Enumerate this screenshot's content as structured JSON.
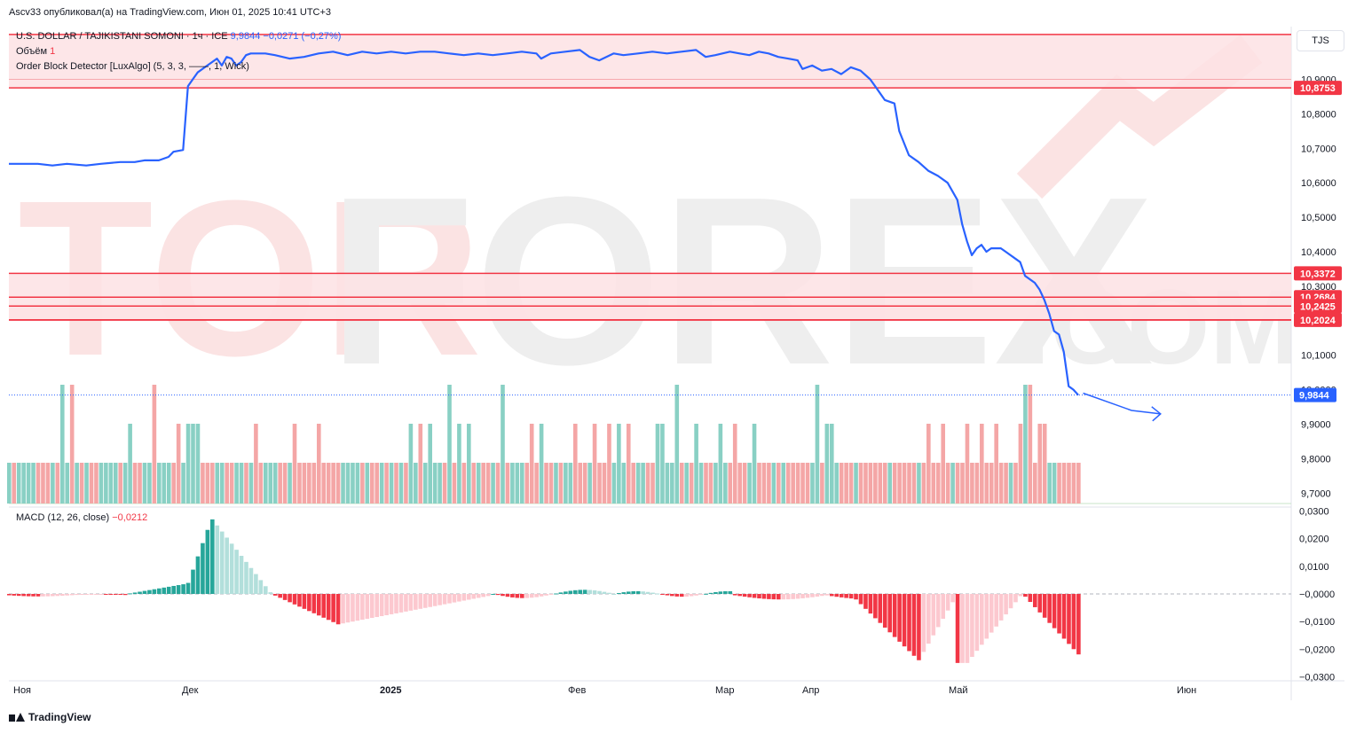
{
  "header": {
    "published": "Ascv33 опубликовал(а) на TradingView.com, Июн 01, 2025 10:41 UTC+3"
  },
  "legend": {
    "symbol": "U.S. DOLLAR / TAJIKISTANI SOMONI · 1ч · ICE",
    "price": "9,9844",
    "change": "−0,0271 (−0,27%)",
    "volume_label": "Объём",
    "volume_value": "1",
    "indicator": "Order Block Detector [LuxAlgo] (5, 3, 3, ——, 1, Wick)",
    "macd_label": "MACD (12, 26, close)",
    "macd_value": "−0,0212"
  },
  "currency": "TJS",
  "footer": {
    "brand": "TradingView"
  },
  "watermark": {
    "left": "TOR",
    "mid": "FOREX",
    "suffix": ".COM"
  },
  "colors": {
    "line": "#2962ff",
    "red": "#f23645",
    "zone": "#fde2e4",
    "vol_up": "#89d0c4",
    "vol_down": "#f4a6a6",
    "macd_up_strong": "#26a69a",
    "macd_up_weak": "#b2dfdb",
    "macd_down_strong": "#f23645",
    "macd_down_weak": "#fcc8cf"
  },
  "chart_data": [
    {
      "type": "line",
      "series": "USD/TJS price",
      "x_labels": [
        "Ноя",
        "Дек",
        "2025",
        "Фев",
        "Мар",
        "Апр",
        "Май",
        "Июн"
      ],
      "y_ticks": [
        "10,9000",
        "10,8000",
        "10,7000",
        "10,6000",
        "10,5000",
        "10,4000",
        "10,3000",
        "10,2000",
        "10,1000",
        "10,0000",
        "9,9000",
        "9,8000",
        "9,7000"
      ],
      "ylim": [
        9.67,
        11.04
      ],
      "current_price": 9.9844,
      "current_label": "9,9844",
      "points": [
        [
          0,
          10.655
        ],
        [
          6,
          10.655
        ],
        [
          9,
          10.65
        ],
        [
          12,
          10.655
        ],
        [
          16,
          10.65
        ],
        [
          19,
          10.655
        ],
        [
          23,
          10.66
        ],
        [
          26,
          10.66
        ],
        [
          28,
          10.665
        ],
        [
          31,
          10.665
        ],
        [
          33,
          10.675
        ],
        [
          34,
          10.69
        ],
        [
          36,
          10.695
        ],
        [
          37,
          10.88
        ],
        [
          38,
          10.9
        ],
        [
          39,
          10.92
        ],
        [
          41,
          10.94
        ],
        [
          43,
          10.96
        ],
        [
          44,
          10.94
        ],
        [
          45,
          10.965
        ],
        [
          46,
          10.96
        ],
        [
          47,
          10.94
        ],
        [
          48,
          10.95
        ],
        [
          49,
          10.97
        ],
        [
          50,
          10.975
        ],
        [
          53,
          10.975
        ],
        [
          55,
          10.97
        ],
        [
          58,
          10.96
        ],
        [
          61,
          10.965
        ],
        [
          64,
          10.975
        ],
        [
          67,
          10.98
        ],
        [
          70,
          10.97
        ],
        [
          73,
          10.98
        ],
        [
          76,
          10.975
        ],
        [
          79,
          10.98
        ],
        [
          82,
          10.975
        ],
        [
          85,
          10.98
        ],
        [
          88,
          10.98
        ],
        [
          91,
          10.975
        ],
        [
          94,
          10.97
        ],
        [
          97,
          10.975
        ],
        [
          100,
          10.97
        ],
        [
          103,
          10.975
        ],
        [
          106,
          10.98
        ],
        [
          109,
          10.975
        ],
        [
          110,
          10.96
        ],
        [
          112,
          10.975
        ],
        [
          115,
          10.98
        ],
        [
          118,
          10.985
        ],
        [
          120,
          10.965
        ],
        [
          122,
          10.955
        ],
        [
          125,
          10.975
        ],
        [
          127,
          10.97
        ],
        [
          130,
          10.975
        ],
        [
          133,
          10.98
        ],
        [
          136,
          10.975
        ],
        [
          139,
          10.98
        ],
        [
          142,
          10.985
        ],
        [
          144,
          10.965
        ],
        [
          146,
          10.97
        ],
        [
          149,
          10.98
        ],
        [
          151,
          10.975
        ],
        [
          153,
          10.97
        ],
        [
          155,
          10.98
        ],
        [
          157,
          10.975
        ],
        [
          159,
          10.965
        ],
        [
          161,
          10.96
        ],
        [
          163,
          10.955
        ],
        [
          164,
          10.93
        ],
        [
          166,
          10.94
        ],
        [
          168,
          10.925
        ],
        [
          170,
          10.93
        ],
        [
          172,
          10.915
        ],
        [
          174,
          10.935
        ],
        [
          176,
          10.925
        ],
        [
          178,
          10.9
        ],
        [
          179,
          10.88
        ],
        [
          181,
          10.84
        ],
        [
          183,
          10.83
        ],
        [
          184,
          10.75
        ],
        [
          186,
          10.68
        ],
        [
          188,
          10.66
        ],
        [
          190,
          10.635
        ],
        [
          192,
          10.62
        ],
        [
          194,
          10.6
        ],
        [
          196,
          10.55
        ],
        [
          197,
          10.48
        ],
        [
          198,
          10.43
        ],
        [
          199,
          10.39
        ],
        [
          200,
          10.41
        ],
        [
          201,
          10.42
        ],
        [
          202,
          10.4
        ],
        [
          203,
          10.41
        ],
        [
          205,
          10.41
        ],
        [
          206,
          10.4
        ],
        [
          207,
          10.39
        ],
        [
          208,
          10.38
        ],
        [
          209,
          10.37
        ],
        [
          210,
          10.33
        ],
        [
          212,
          10.31
        ],
        [
          213,
          10.29
        ],
        [
          214,
          10.26
        ],
        [
          215,
          10.22
        ],
        [
          216,
          10.17
        ],
        [
          217,
          10.16
        ],
        [
          218,
          10.11
        ],
        [
          219,
          10.01
        ],
        [
          220,
          10.0
        ],
        [
          221,
          9.9844
        ]
      ],
      "x_domain": [
        0,
        265
      ],
      "forecast_arrow": [
        [
          222,
          9.99
        ],
        [
          232,
          9.94
        ],
        [
          238,
          9.93
        ]
      ],
      "order_blocks": [
        {
          "top": 11.03,
          "bottom": 10.8753,
          "label": "10,8753",
          "midline": 10.9
        },
        {
          "top": 10.3372,
          "bottom": 10.2684,
          "label": "10,3372"
        },
        {
          "top": 10.2684,
          "bottom": 10.2024,
          "label": "10,2684"
        },
        {
          "top": 10.2425,
          "bottom": 10.2024,
          "label": "10,2425"
        },
        {
          "top": 10.2024,
          "bottom": 10.2024,
          "label": "10,2024"
        }
      ],
      "volume_levels": {
        "up": [
          1,
          2,
          3
        ],
        "pattern": "unit volume bars"
      }
    },
    {
      "type": "bar",
      "series": "MACD histogram",
      "y_ticks": [
        "0,0300",
        "0,0200",
        "0,0100",
        "−0,0000",
        "−0,0100",
        "−0,0200",
        "−0,0300"
      ],
      "ylim": [
        -0.0305,
        0.0305
      ],
      "values_note": "approximate per-bar histogram"
    }
  ]
}
